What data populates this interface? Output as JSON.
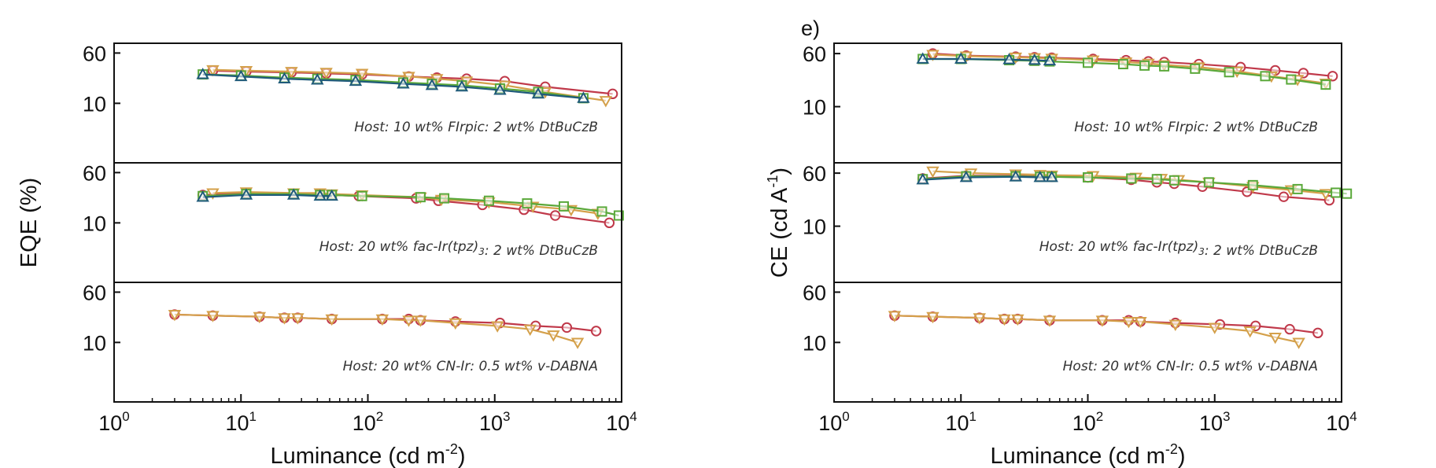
{
  "chart_data": [
    {
      "type": "line",
      "panel_label": "",
      "xlabel": "Luminance (cd m",
      "xlabel_sup": "-2",
      "xlabel_end": ")",
      "ylabel": "EQE (%)",
      "ylabel_sup": "",
      "ylabel_end": "",
      "x_scale": "log",
      "xlim": [
        1,
        10000
      ],
      "x_ticks": [
        1,
        10,
        100,
        1000,
        10000
      ],
      "x_tick_labels": [
        [
          "10",
          "0"
        ],
        [
          "10",
          "1"
        ],
        [
          "10",
          "2"
        ],
        [
          "10",
          "3"
        ],
        [
          "10",
          "4"
        ]
      ],
      "y_scale": "log",
      "y_ticks": [
        10,
        60
      ],
      "y_tick_labels": [
        "10",
        "60"
      ],
      "panels": [
        {
          "annotation": [
            {
              "t": "Host: 10 wt% FIrpic: 2 wt% DtBuCzB"
            }
          ],
          "ylim": [
            1.2,
            85
          ],
          "series": [
            {
              "color": "#c0394a",
              "marker": "circle",
              "x": [
                6,
                11,
                25,
                47,
                90,
                210,
                350,
                600,
                1200,
                2500,
                8500
              ],
              "y": [
                32,
                31,
                30,
                29,
                28,
                26,
                25,
                24,
                22,
                18,
                14
              ]
            },
            {
              "color": "#d4a04a",
              "marker": "triangle-down",
              "x": [
                6,
                11,
                25,
                47,
                90,
                210,
                350,
                600,
                1200,
                2500,
                7500
              ],
              "y": [
                33,
                32,
                31,
                30,
                29,
                26,
                24,
                22,
                19,
                15,
                11
              ]
            },
            {
              "color": "#5aa83a",
              "marker": "square",
              "x": [
                5,
                10,
                22,
                40,
                80,
                190,
                320,
                550,
                1100,
                2200,
                5000
              ],
              "y": [
                28,
                27,
                25,
                24,
                23,
                21,
                20,
                19,
                17,
                15,
                12
              ]
            },
            {
              "color": "#1f5a7a",
              "marker": "triangle-up",
              "x": [
                5,
                10,
                22,
                40,
                80,
                190,
                320,
                550,
                1100,
                2200,
                5000
              ],
              "y": [
                28,
                26,
                24,
                23,
                22,
                20,
                19,
                18,
                16,
                14,
                12
              ]
            }
          ]
        },
        {
          "annotation": [
            {
              "t": "Host: 20 wt% fac-Ir(tpz)"
            },
            {
              "t": "3",
              "sub": true
            },
            {
              "t": ": 2 wt% DtBuCzB"
            }
          ],
          "ylim": [
            1.2,
            85
          ],
          "series": [
            {
              "color": "#c0394a",
              "marker": "circle",
              "x": [
                5,
                11,
                26,
                42,
                52,
                85,
                240,
                360,
                800,
                1700,
                3000,
                8000
              ],
              "y": [
                27,
                29,
                28,
                28,
                27,
                26,
                24,
                22,
                19,
                16,
                13,
                10
              ]
            },
            {
              "color": "#d4a04a",
              "marker": "triangle-down",
              "x": [
                6,
                11,
                26,
                42,
                52,
                90,
                260,
                380,
                900,
                2000,
                4000,
                6500
              ],
              "y": [
                29,
                30,
                29,
                29,
                28,
                27,
                25,
                23,
                21,
                18,
                16,
                14
              ]
            },
            {
              "color": "#5aa83a",
              "marker": "square",
              "x": [
                5,
                11,
                26,
                42,
                52,
                90,
                260,
                400,
                900,
                1800,
                3500,
                7000,
                9500
              ],
              "y": [
                26,
                28,
                28,
                27,
                27,
                26,
                25,
                24,
                22,
                20,
                18,
                15,
                13
              ]
            },
            {
              "color": "#1f5a7a",
              "marker": "triangle-up",
              "x": [
                5,
                11,
                26,
                42,
                52
              ],
              "y": [
                25,
                27,
                27,
                26,
                26
              ]
            }
          ]
        },
        {
          "annotation": [
            {
              "t": "Host: 20 wt% CN-Ir: 0.5 wt% v-DABNA"
            }
          ],
          "ylim": [
            1.2,
            85
          ],
          "series": [
            {
              "color": "#c0394a",
              "marker": "circle",
              "x": [
                3,
                6,
                14,
                22,
                28,
                52,
                130,
                210,
                260,
                490,
                1100,
                2100,
                3700,
                6300
              ],
              "y": [
                27,
                26,
                25,
                24,
                24,
                23,
                23,
                23,
                22,
                21,
                20,
                18,
                17,
                15
              ]
            },
            {
              "color": "#d4a04a",
              "marker": "triangle-down",
              "x": [
                3,
                6,
                14,
                22,
                28,
                52,
                130,
                210,
                260,
                490,
                1050,
                1900,
                2900,
                4500
              ],
              "y": [
                27,
                26,
                25,
                24,
                24,
                23,
                23,
                22,
                22,
                20,
                18,
                16,
                13,
                10
              ]
            }
          ]
        }
      ]
    },
    {
      "type": "line",
      "panel_label": "e)",
      "xlabel": "Luminance (cd m",
      "xlabel_sup": "-2",
      "xlabel_end": ")",
      "ylabel": "CE (cd A",
      "ylabel_sup": "-1",
      "ylabel_end": ")",
      "x_scale": "log",
      "xlim": [
        1,
        10000
      ],
      "x_ticks": [
        1,
        10,
        100,
        1000,
        10000
      ],
      "x_tick_labels": [
        [
          "10",
          "0"
        ],
        [
          "10",
          "1"
        ],
        [
          "10",
          "2"
        ],
        [
          "10",
          "3"
        ],
        [
          "10",
          "4"
        ]
      ],
      "y_scale": "log",
      "y_ticks": [
        10,
        60
      ],
      "y_tick_labels": [
        "10",
        "60"
      ],
      "panels": [
        {
          "annotation": [
            {
              "t": "Host: 10 wt% FIrpic: 2 wt% DtBuCzB"
            }
          ],
          "ylim": [
            1.5,
            85
          ],
          "series": [
            {
              "color": "#c0394a",
              "marker": "circle",
              "x": [
                6,
                11,
                27,
                38,
                52,
                110,
                200,
                300,
                400,
                750,
                1600,
                3000,
                5000,
                8500
              ],
              "y": [
                60,
                56,
                54,
                53,
                52,
                50,
                48,
                46,
                45,
                42,
                38,
                34,
                31,
                28
              ]
            },
            {
              "color": "#d4a04a",
              "marker": "triangle-down",
              "x": [
                6,
                11,
                27,
                38,
                52,
                110,
                200,
                300,
                400,
                750,
                1500,
                2800,
                4500,
                7500
              ],
              "y": [
                58,
                55,
                53,
                52,
                51,
                48,
                45,
                43,
                41,
                38,
                33,
                28,
                25,
                22
              ]
            },
            {
              "color": "#5aa83a",
              "marker": "square",
              "x": [
                5,
                10,
                24,
                38,
                50,
                100,
                190,
                280,
                400,
                700,
                1300,
                2500,
                4000,
                7500
              ],
              "y": [
                50,
                50,
                48,
                47,
                46,
                44,
                42,
                40,
                39,
                36,
                32,
                28,
                25,
                21
              ]
            },
            {
              "color": "#1f5a7a",
              "marker": "triangle-up",
              "x": [
                5,
                10,
                24,
                38,
                50
              ],
              "y": [
                50,
                50,
                49,
                48,
                47
              ]
            }
          ]
        },
        {
          "annotation": [
            {
              "t": "Host: 20 wt% fac-Ir(tpz)"
            },
            {
              "t": "3",
              "sub": true
            },
            {
              "t": ": 2 wt% DtBuCzB"
            }
          ],
          "ylim": [
            1.5,
            85
          ],
          "series": [
            {
              "color": "#c0394a",
              "marker": "circle",
              "x": [
                5,
                11,
                27,
                42,
                52,
                100,
                220,
                350,
                480,
                800,
                1800,
                3500,
                8000
              ],
              "y": [
                50,
                55,
                55,
                54,
                53,
                52,
                48,
                44,
                42,
                38,
                32,
                27,
                24
              ]
            },
            {
              "color": "#d4a04a",
              "marker": "triangle-down",
              "x": [
                6,
                12,
                27,
                42,
                52,
                110,
                240,
                380,
                520,
                900,
                2000,
                4000,
                7500
              ],
              "y": [
                64,
                60,
                58,
                57,
                56,
                55,
                52,
                50,
                48,
                44,
                38,
                34,
                30
              ]
            },
            {
              "color": "#5aa83a",
              "marker": "square",
              "x": [
                5,
                11,
                27,
                42,
                52,
                100,
                220,
                350,
                480,
                900,
                2000,
                4500,
                9000,
                11000
              ],
              "y": [
                49,
                54,
                54,
                53,
                53,
                52,
                50,
                49,
                47,
                44,
                40,
                35,
                31,
                30
              ]
            },
            {
              "color": "#1f5a7a",
              "marker": "triangle-up",
              "x": [
                5,
                11,
                27,
                42,
                52
              ],
              "y": [
                48,
                52,
                53,
                52,
                52
              ]
            }
          ]
        },
        {
          "annotation": [
            {
              "t": "Host: 20 wt% CN-Ir: 0.5 wt% v-DABNA"
            }
          ],
          "ylim": [
            1.2,
            85
          ],
          "series": [
            {
              "color": "#c0394a",
              "marker": "circle",
              "x": [
                3,
                6,
                14,
                22,
                28,
                50,
                130,
                210,
                260,
                490,
                1100,
                2100,
                3900,
                6500
              ],
              "y": [
                26,
                25,
                24,
                23,
                23,
                22,
                22,
                22,
                21,
                20,
                19,
                18,
                16,
                14
              ]
            },
            {
              "color": "#d4a04a",
              "marker": "triangle-down",
              "x": [
                3,
                6,
                14,
                22,
                28,
                50,
                130,
                210,
                260,
                490,
                1000,
                1900,
                3000,
                4600
              ],
              "y": [
                26,
                25,
                24,
                23,
                23,
                22,
                22,
                21,
                21,
                19,
                17,
                15,
                12,
                10
              ]
            }
          ]
        }
      ]
    }
  ]
}
